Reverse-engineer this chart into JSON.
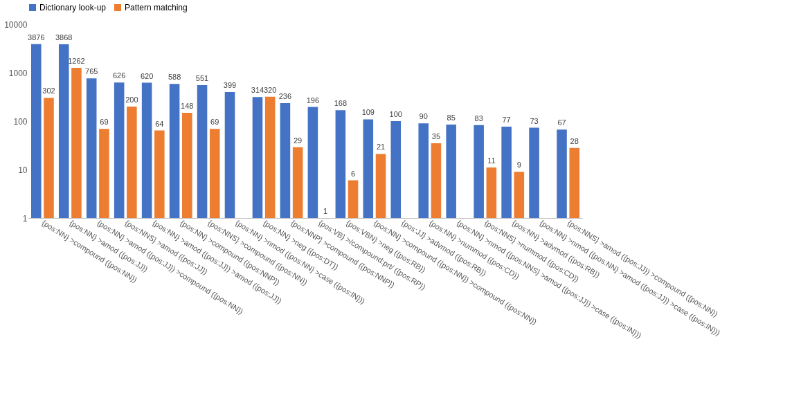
{
  "chart_data": {
    "type": "bar",
    "categories": [
      "{pos:NN} >compound ({pos:NN})",
      "{pos:NN} >amod ({pos:JJ})",
      "{pos:NN} >amod ({pos:JJ}) >compound ({pos:NN})",
      "{pos:NNS} >amod ({pos:JJ})",
      "{pos:NN} >amod ({pos:JJ}) >amod ({pos:JJ})",
      "{pos:NN} >compound ({pos:NNP})",
      "{pos:NNS} >compound ({pos:NN})",
      "{pos:NN} >nmod ({pos:NN} >case ({pos:IN}))",
      "{pos:NN} >neg ({pos:DT})",
      "{pos:NNP} >compound ({pos:NNP})",
      "{pos:VB} >/compound:prt/ ({pos:RP})",
      "{pos:VBN} >neg ({pos:RB})",
      "{pos:NN} >compound ({pos:NN}) >compound ({pos:NN})",
      "{pos:JJ} >advmod ({pos:RB})",
      "{pos:NN} >nummod ({pos:CD})",
      "{pos:NN} >nmod ({pos:NNS} >amod ({pos:JJ}) >case ({pos:IN}))",
      "{pos:NNS} >nummod ({pos:CD})",
      "{pos:NN} >advmod ({pos:RB})",
      "{pos:NN} >nmod ({pos:NN} >amod ({pos:JJ}) >case ({pos:IN}))",
      "{pos:NNS} >amod ({pos:JJ}) >compound ({pos:NN})"
    ],
    "series": [
      {
        "name": "Dictionary look-up",
        "color": "#4472c4",
        "values": [
          3876,
          3868,
          765,
          626,
          620,
          588,
          551,
          399,
          314,
          236,
          196,
          168,
          109,
          100,
          90,
          85,
          83,
          77,
          73,
          67
        ]
      },
      {
        "name": "Pattern matching",
        "color": "#ed7d31",
        "values": [
          302,
          1262,
          69,
          200,
          64,
          148,
          69,
          null,
          320,
          29,
          1,
          6,
          21,
          null,
          35,
          null,
          11,
          9,
          null,
          28
        ]
      }
    ],
    "log": true,
    "ylim": [
      1,
      10000
    ],
    "yticks": [
      1,
      10,
      100,
      1000,
      10000
    ],
    "data_labels": true,
    "grid": false,
    "legend": "top"
  }
}
